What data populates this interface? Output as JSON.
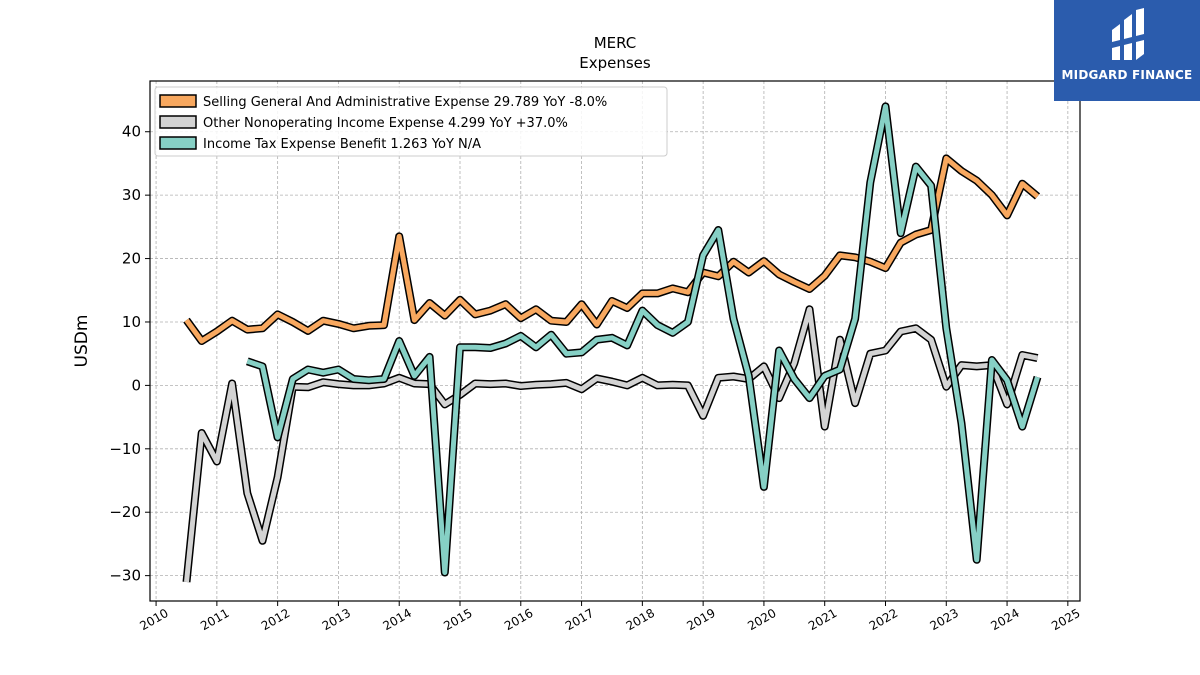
{
  "chart_data": {
    "type": "line",
    "title": "MERC",
    "subtitle": "Expenses",
    "xlabel": "",
    "ylabel": "USDm",
    "xlim": [
      2009.9,
      2025.2
    ],
    "ylim": [
      -34,
      48
    ],
    "x_ticks": [
      2010,
      2011,
      2012,
      2013,
      2014,
      2015,
      2016,
      2017,
      2018,
      2019,
      2020,
      2021,
      2022,
      2023,
      2024,
      2025
    ],
    "y_ticks": [
      -30,
      -20,
      -10,
      0,
      10,
      20,
      30,
      40
    ],
    "grid": true,
    "legend_position": "top-left",
    "series": [
      {
        "name": "Selling General And Administrative Expense",
        "legend_label": "Selling General And Administrative Expense  29.789 YoY -8.0%",
        "color": "#f8a85f",
        "points": [
          [
            2010.5,
            10.3
          ],
          [
            2010.75,
            7.0
          ],
          [
            2011.0,
            8.5
          ],
          [
            2011.25,
            10.2
          ],
          [
            2011.5,
            8.8
          ],
          [
            2011.75,
            9.0
          ],
          [
            2012.0,
            11.2
          ],
          [
            2012.25,
            10.0
          ],
          [
            2012.5,
            8.6
          ],
          [
            2012.75,
            10.2
          ],
          [
            2013.0,
            9.7
          ],
          [
            2013.25,
            9.0
          ],
          [
            2013.5,
            9.4
          ],
          [
            2013.75,
            9.5
          ],
          [
            2014.0,
            23.5
          ],
          [
            2014.25,
            10.3
          ],
          [
            2014.5,
            13.0
          ],
          [
            2014.75,
            11.0
          ],
          [
            2015.0,
            13.5
          ],
          [
            2015.25,
            11.2
          ],
          [
            2015.5,
            11.8
          ],
          [
            2015.75,
            12.8
          ],
          [
            2016.0,
            10.6
          ],
          [
            2016.25,
            12.0
          ],
          [
            2016.5,
            10.2
          ],
          [
            2016.75,
            10.0
          ],
          [
            2017.0,
            12.8
          ],
          [
            2017.25,
            9.6
          ],
          [
            2017.5,
            13.3
          ],
          [
            2017.75,
            12.2
          ],
          [
            2018.0,
            14.5
          ],
          [
            2018.25,
            14.5
          ],
          [
            2018.5,
            15.3
          ],
          [
            2018.75,
            14.7
          ],
          [
            2019.0,
            17.8
          ],
          [
            2019.25,
            17.2
          ],
          [
            2019.5,
            19.5
          ],
          [
            2019.75,
            17.8
          ],
          [
            2020.0,
            19.6
          ],
          [
            2020.25,
            17.5
          ],
          [
            2020.5,
            16.3
          ],
          [
            2020.75,
            15.2
          ],
          [
            2021.0,
            17.3
          ],
          [
            2021.25,
            20.5
          ],
          [
            2021.5,
            20.2
          ],
          [
            2021.75,
            19.5
          ],
          [
            2022.0,
            18.5
          ],
          [
            2022.25,
            22.5
          ],
          [
            2022.5,
            23.8
          ],
          [
            2022.75,
            24.5
          ],
          [
            2023.0,
            35.8
          ],
          [
            2023.25,
            33.8
          ],
          [
            2023.5,
            32.3
          ],
          [
            2023.75,
            30.0
          ],
          [
            2024.0,
            26.8
          ],
          [
            2024.25,
            31.8
          ],
          [
            2024.5,
            29.8
          ]
        ]
      },
      {
        "name": "Other Nonoperating Income Expense",
        "legend_label": "Other Nonoperating Income Expense  4.299 YoY +37.0%",
        "color": "#d3d3d3",
        "points": [
          [
            2010.5,
            -31.0
          ],
          [
            2010.75,
            -7.5
          ],
          [
            2011.0,
            -12.0
          ],
          [
            2011.25,
            0.3
          ],
          [
            2011.5,
            -17.0
          ],
          [
            2011.75,
            -24.5
          ],
          [
            2012.0,
            -14.5
          ],
          [
            2012.25,
            -0.2
          ],
          [
            2012.5,
            -0.3
          ],
          [
            2012.75,
            0.5
          ],
          [
            2013.0,
            0.2
          ],
          [
            2013.25,
            0.0
          ],
          [
            2013.5,
            0.0
          ],
          [
            2013.75,
            0.3
          ],
          [
            2014.0,
            1.2
          ],
          [
            2014.25,
            0.3
          ],
          [
            2014.5,
            0.2
          ],
          [
            2014.75,
            -3.0
          ],
          [
            2015.0,
            -1.5
          ],
          [
            2015.25,
            0.3
          ],
          [
            2015.5,
            0.2
          ],
          [
            2015.75,
            0.3
          ],
          [
            2016.0,
            -0.1
          ],
          [
            2016.25,
            0.1
          ],
          [
            2016.5,
            0.2
          ],
          [
            2016.75,
            0.4
          ],
          [
            2017.0,
            -0.6
          ],
          [
            2017.25,
            1.1
          ],
          [
            2017.5,
            0.6
          ],
          [
            2017.75,
            0.0
          ],
          [
            2018.0,
            1.2
          ],
          [
            2018.25,
            0.0
          ],
          [
            2018.5,
            0.1
          ],
          [
            2018.75,
            0.0
          ],
          [
            2019.0,
            -4.8
          ],
          [
            2019.25,
            1.2
          ],
          [
            2019.5,
            1.4
          ],
          [
            2019.75,
            1.0
          ],
          [
            2020.0,
            3.0
          ],
          [
            2020.25,
            -2.0
          ],
          [
            2020.5,
            3.5
          ],
          [
            2020.75,
            12.0
          ],
          [
            2021.0,
            -6.5
          ],
          [
            2021.25,
            7.2
          ],
          [
            2021.5,
            -2.8
          ],
          [
            2021.75,
            5.0
          ],
          [
            2022.0,
            5.5
          ],
          [
            2022.25,
            8.5
          ],
          [
            2022.5,
            9.0
          ],
          [
            2022.75,
            7.2
          ],
          [
            2023.0,
            -0.2
          ],
          [
            2023.25,
            3.2
          ],
          [
            2023.5,
            3.0
          ],
          [
            2023.75,
            3.2
          ],
          [
            2024.0,
            -3.0
          ],
          [
            2024.25,
            4.8
          ],
          [
            2024.5,
            4.3
          ]
        ]
      },
      {
        "name": "Income Tax Expense Benefit",
        "legend_label": "Income Tax Expense Benefit  1.263 YoY N/A",
        "color": "#86d0c5",
        "points": [
          [
            2011.5,
            3.8
          ],
          [
            2011.75,
            3.0
          ],
          [
            2012.0,
            -8.2
          ],
          [
            2012.25,
            1.0
          ],
          [
            2012.5,
            2.5
          ],
          [
            2012.75,
            2.0
          ],
          [
            2013.0,
            2.5
          ],
          [
            2013.25,
            1.0
          ],
          [
            2013.5,
            0.8
          ],
          [
            2013.75,
            1.0
          ],
          [
            2014.0,
            7.0
          ],
          [
            2014.25,
            1.5
          ],
          [
            2014.5,
            4.5
          ],
          [
            2014.75,
            -29.5
          ],
          [
            2015.0,
            6.0
          ],
          [
            2015.25,
            6.0
          ],
          [
            2015.5,
            5.9
          ],
          [
            2015.75,
            6.6
          ],
          [
            2016.0,
            7.8
          ],
          [
            2016.25,
            6.0
          ],
          [
            2016.5,
            8.0
          ],
          [
            2016.75,
            5.0
          ],
          [
            2017.0,
            5.2
          ],
          [
            2017.25,
            7.2
          ],
          [
            2017.5,
            7.5
          ],
          [
            2017.75,
            6.3
          ],
          [
            2018.0,
            11.8
          ],
          [
            2018.25,
            9.5
          ],
          [
            2018.5,
            8.3
          ],
          [
            2018.75,
            10.0
          ],
          [
            2019.0,
            20.5
          ],
          [
            2019.25,
            24.5
          ],
          [
            2019.5,
            10.5
          ],
          [
            2019.75,
            1.5
          ],
          [
            2020.0,
            -16.0
          ],
          [
            2020.25,
            5.5
          ],
          [
            2020.5,
            1.0
          ],
          [
            2020.75,
            -2.0
          ],
          [
            2021.0,
            1.5
          ],
          [
            2021.25,
            2.5
          ],
          [
            2021.5,
            10.5
          ],
          [
            2021.75,
            32.0
          ],
          [
            2022.0,
            44.0
          ],
          [
            2022.25,
            24.0
          ],
          [
            2022.5,
            34.5
          ],
          [
            2022.75,
            31.5
          ],
          [
            2023.0,
            9.0
          ],
          [
            2023.25,
            -6.0
          ],
          [
            2023.5,
            -27.5
          ],
          [
            2023.75,
            4.0
          ],
          [
            2024.0,
            0.8
          ],
          [
            2024.25,
            -6.5
          ],
          [
            2024.5,
            1.3
          ]
        ]
      }
    ]
  },
  "logo": {
    "text": "MIDGARD FINANCE",
    "background": "#2b5cad"
  }
}
